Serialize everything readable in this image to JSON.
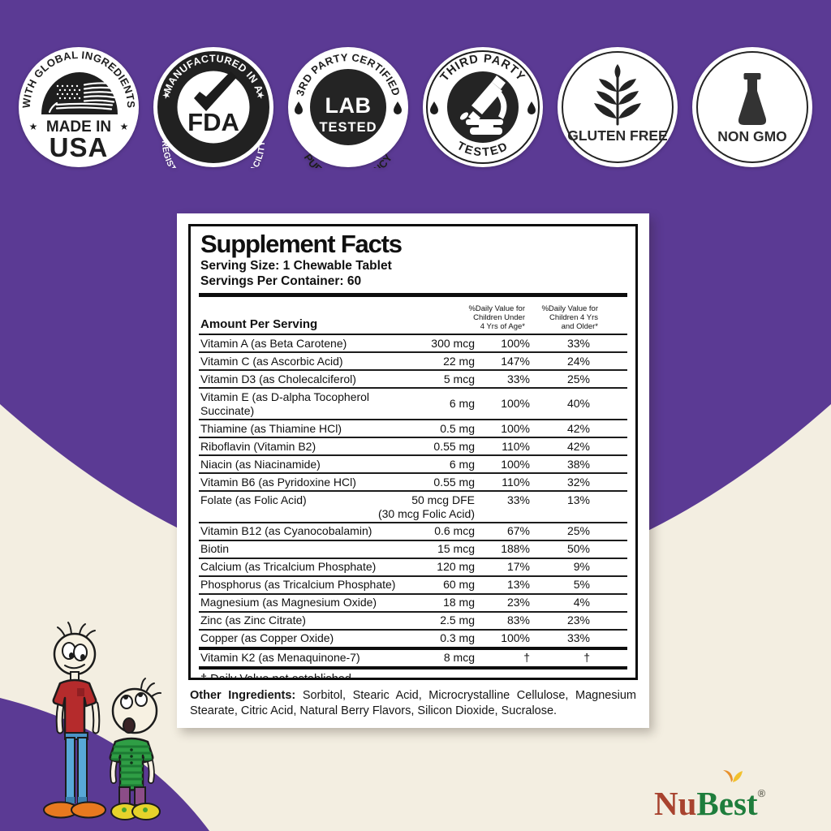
{
  "canvas": {
    "background": "#f3eee1",
    "purple": "#5b3a94",
    "panel_white": "#ffffff",
    "badge_dark": "#242424"
  },
  "badges": [
    {
      "name": "made-in-usa",
      "arc_top": "WITH GLOBAL INGREDIENTS",
      "star": "★",
      "line1": "MADE IN",
      "line2": "USA",
      "icon": "us-flag"
    },
    {
      "name": "fda-registered",
      "arc_top": "MANUFACTURED IN A",
      "arc_bottom": "REGISTERED & INSPECTED FACILITY",
      "star": "★",
      "center": "FDA",
      "icon": "checkmark"
    },
    {
      "name": "lab-tested",
      "arc_top": "3RD PARTY CERTIFIED",
      "arc_bottom": "PURITY & POTENCY",
      "line1": "LAB",
      "line2": "TESTED",
      "icon": "droplet"
    },
    {
      "name": "third-party-tested",
      "arc_top": "THIRD PARTY",
      "arc_bottom": "TESTED",
      "icon": "microscope"
    },
    {
      "name": "gluten-free",
      "label": "GLUTEN FREE",
      "icon": "wheat"
    },
    {
      "name": "non-gmo",
      "label": "NON GMO",
      "icon": "flask"
    }
  ],
  "panel": {
    "title": "Supplement Facts",
    "serving_size": "Serving Size: 1 Chewable Tablet",
    "servings_per_container": "Servings Per Container: 60",
    "amount_header": "Amount Per Serving",
    "col_under4": "%Daily Value for\nChildren Under\n4 Yrs of Age*",
    "col_4plus": "%Daily Value for\nChildren 4 Yrs\nand Older*",
    "rows": [
      {
        "n": "Vitamin A (as Beta Carotene)",
        "a": "300 mcg",
        "d1": "100%",
        "d2": "33%"
      },
      {
        "n": "Vitamin C (as Ascorbic Acid)",
        "a": "22 mg",
        "d1": "147%",
        "d2": "24%"
      },
      {
        "n": "Vitamin D3 (as Cholecalciferol)",
        "a": "5 mcg",
        "d1": "33%",
        "d2": "25%"
      },
      {
        "n": "Vitamin E (as D-alpha Tocopherol Succinate)",
        "a": "6 mg",
        "d1": "100%",
        "d2": "40%"
      },
      {
        "n": "Thiamine (as Thiamine HCl)",
        "a": "0.5 mg",
        "d1": "100%",
        "d2": "42%"
      },
      {
        "n": "Riboflavin (Vitamin B2)",
        "a": "0.55 mg",
        "d1": "110%",
        "d2": "42%"
      },
      {
        "n": "Niacin (as Niacinamide)",
        "a": "6 mg",
        "d1": "100%",
        "d2": "38%"
      },
      {
        "n": "Vitamin B6 (as Pyridoxine HCl)",
        "a": "0.55 mg",
        "d1": "110%",
        "d2": "32%"
      },
      {
        "n": "Folate (as Folic Acid)",
        "a": "50 mcg DFE",
        "a2": "(30 mcg Folic Acid)",
        "d1": "33%",
        "d2": "13%",
        "tall": true
      },
      {
        "n": "Vitamin B12 (as Cyanocobalamin)",
        "a": "0.6 mcg",
        "d1": "67%",
        "d2": "25%"
      },
      {
        "n": "Biotin",
        "a": "15 mcg",
        "d1": "188%",
        "d2": "50%"
      },
      {
        "n": "Calcium (as Tricalcium Phosphate)",
        "a": "120 mg",
        "d1": "17%",
        "d2": "9%"
      },
      {
        "n": "Phosphorus (as Tricalcium Phosphate)",
        "a": "60 mg",
        "d1": "13%",
        "d2": "5%"
      },
      {
        "n": "Magnesium (as Magnesium Oxide)",
        "a": "18 mg",
        "d1": "23%",
        "d2": "4%"
      },
      {
        "n": "Zinc (as Zinc Citrate)",
        "a": "2.5 mg",
        "d1": "83%",
        "d2": "23%"
      },
      {
        "n": "Copper (as Copper Oxide)",
        "a": "0.3 mg",
        "d1": "100%",
        "d2": "33%"
      },
      {
        "n": "Vitamin K2 (as Menaquinone-7)",
        "a": "8 mcg",
        "d1": "†",
        "d2": "†",
        "thick": true
      }
    ],
    "footnote": "† Daily Value not established.",
    "other_label": "Other Ingredients:",
    "other_text": "Sorbitol, Stearic Acid, Microcrystalline Cellulose, Magnesium Stearate, Citric Acid, Natural Berry Flavors, Silicon Dioxide, Sucralose."
  },
  "logo": {
    "nu": "Nu",
    "best": "Best",
    "reg": "®",
    "nu_color": "#a8432f",
    "best_color": "#1e7d3c"
  }
}
